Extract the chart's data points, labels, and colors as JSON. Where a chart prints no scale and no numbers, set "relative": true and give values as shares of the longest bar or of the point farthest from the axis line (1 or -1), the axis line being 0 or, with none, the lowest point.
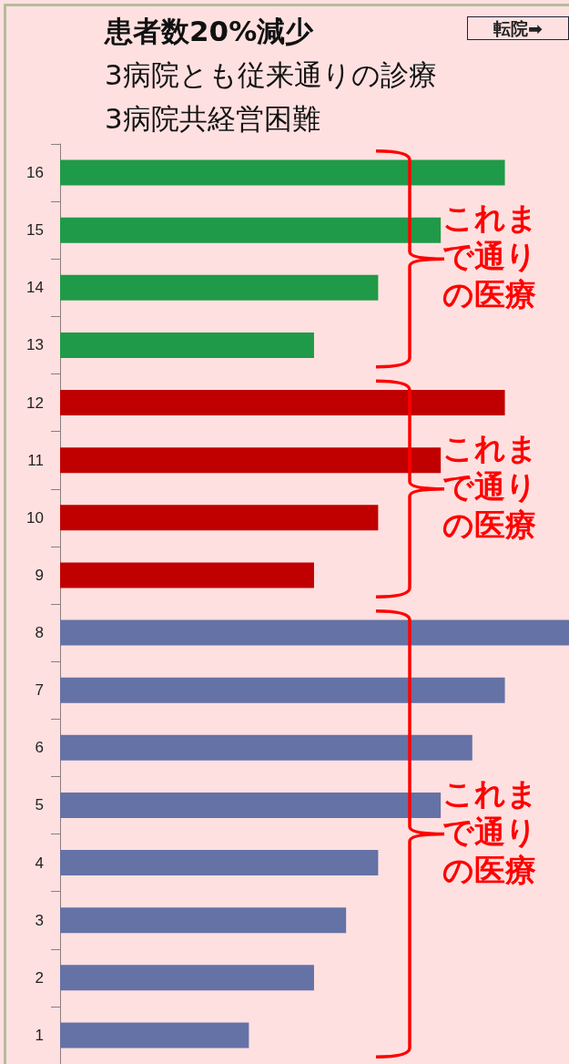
{
  "chart_data": {
    "type": "bar",
    "orientation": "horizontal",
    "relative": true,
    "title": "患者数20%減少",
    "subtitle": "3病院とも従来通りの診療\n3病院共経営困難",
    "categories": [
      "16",
      "15",
      "14",
      "13",
      "12",
      "11",
      "10",
      "9",
      "8",
      "7",
      "6",
      "5",
      "4",
      "3",
      "2",
      "1"
    ],
    "series": [
      {
        "color": "#1f9a48",
        "values": [
          0.874,
          0.748,
          0.625,
          0.499,
          null,
          null,
          null,
          null,
          null,
          null,
          null,
          null,
          null,
          null,
          null,
          null
        ]
      },
      {
        "color": "#c00000",
        "values": [
          null,
          null,
          null,
          null,
          0.874,
          0.748,
          0.625,
          0.499,
          null,
          null,
          null,
          null,
          null,
          null,
          null,
          null
        ]
      },
      {
        "color": "#6472a6",
        "values": [
          null,
          null,
          null,
          null,
          null,
          null,
          null,
          null,
          1,
          0.874,
          0.81,
          0.748,
          0.625,
          0.562,
          0.499,
          0.371
        ]
      }
    ],
    "annotations": [
      "転院➡",
      "これまで通りの医療",
      "これまで通りの医療",
      "これまで通りの医療"
    ]
  }
}
